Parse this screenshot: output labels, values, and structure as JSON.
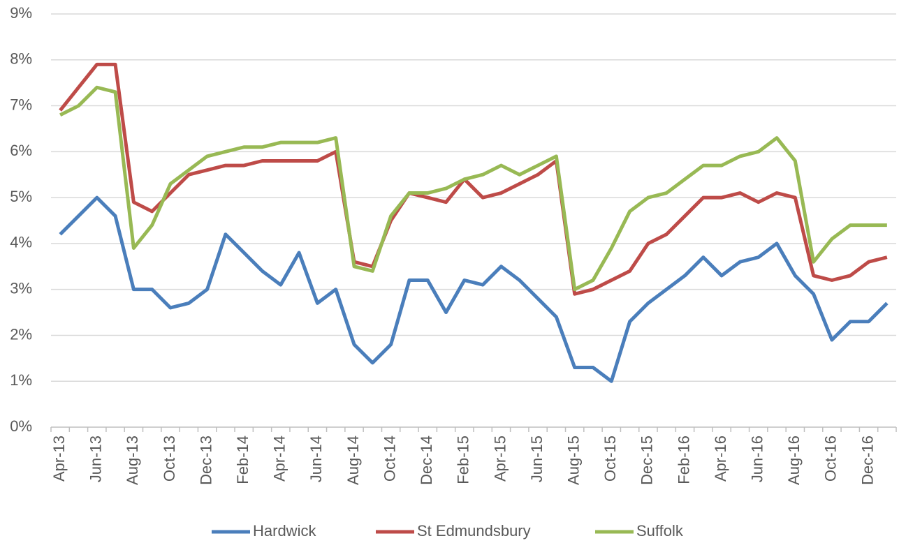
{
  "chart_data": {
    "type": "line",
    "categories": [
      "Apr-13",
      null,
      "Jun-13",
      null,
      "Aug-13",
      null,
      "Oct-13",
      null,
      "Dec-13",
      null,
      "Feb-14",
      null,
      "Apr-14",
      null,
      "Jun-14",
      null,
      "Aug-14",
      null,
      "Oct-14",
      null,
      "Dec-14",
      null,
      "Feb-15",
      null,
      "Apr-15",
      null,
      "Jun-15",
      null,
      "Aug-15",
      null,
      "Oct-15",
      null,
      "Dec-15",
      null,
      "Feb-16",
      null,
      "Apr-16",
      null,
      "Jun-16",
      null,
      "Aug-16",
      null,
      "Oct-16",
      null,
      "Dec-16",
      null
    ],
    "series": [
      {
        "name": "Hardwick",
        "color": "#4a7ebb",
        "values": [
          4.2,
          4.6,
          5.0,
          4.6,
          3.0,
          3.0,
          2.6,
          2.7,
          3.0,
          4.2,
          3.8,
          3.4,
          3.1,
          3.8,
          2.7,
          3.0,
          1.8,
          1.4,
          1.8,
          3.2,
          3.2,
          2.5,
          3.2,
          3.1,
          3.5,
          3.2,
          2.8,
          2.4,
          1.3,
          1.3,
          1.0,
          2.3,
          2.7,
          3.0,
          3.3,
          3.7,
          3.3,
          3.6,
          3.7,
          4.0,
          3.3,
          2.9,
          1.9,
          2.3,
          2.3,
          2.7
        ]
      },
      {
        "name": "St Edmundsbury",
        "color": "#be4b48",
        "values": [
          6.9,
          7.4,
          7.9,
          7.9,
          4.9,
          4.7,
          5.1,
          5.5,
          5.6,
          5.7,
          5.7,
          5.8,
          5.8,
          5.8,
          5.8,
          6.0,
          3.6,
          3.5,
          4.5,
          5.1,
          5.0,
          4.9,
          5.4,
          5.0,
          5.1,
          5.3,
          5.5,
          5.8,
          2.9,
          3.0,
          3.2,
          3.4,
          4.0,
          4.2,
          4.6,
          5.0,
          5.0,
          5.1,
          4.9,
          5.1,
          5.0,
          3.3,
          3.2,
          3.3,
          3.6,
          3.7
        ]
      },
      {
        "name": "Suffolk",
        "color": "#98b954",
        "values": [
          6.8,
          7.0,
          7.4,
          7.3,
          3.9,
          4.4,
          5.3,
          5.6,
          5.9,
          6.0,
          6.1,
          6.1,
          6.2,
          6.2,
          6.2,
          6.3,
          3.5,
          3.4,
          4.6,
          5.1,
          5.1,
          5.2,
          5.4,
          5.5,
          5.7,
          5.5,
          5.7,
          5.9,
          3.0,
          3.2,
          3.9,
          4.7,
          5.0,
          5.1,
          5.4,
          5.7,
          5.7,
          5.9,
          6.0,
          6.3,
          5.8,
          3.6,
          4.1,
          4.4,
          4.4,
          4.4
        ]
      }
    ],
    "ylim": [
      0,
      9
    ],
    "yticks": [
      {
        "value": 0,
        "label": "0%"
      },
      {
        "value": 1,
        "label": "1%"
      },
      {
        "value": 2,
        "label": "2%"
      },
      {
        "value": 3,
        "label": "3%"
      },
      {
        "value": 4,
        "label": "4%"
      },
      {
        "value": 5,
        "label": "5%"
      },
      {
        "value": 6,
        "label": "6%"
      },
      {
        "value": 7,
        "label": "7%"
      },
      {
        "value": 8,
        "label": "8%"
      },
      {
        "value": 9,
        "label": "9%"
      }
    ],
    "grid": true,
    "legend": "bottom"
  }
}
